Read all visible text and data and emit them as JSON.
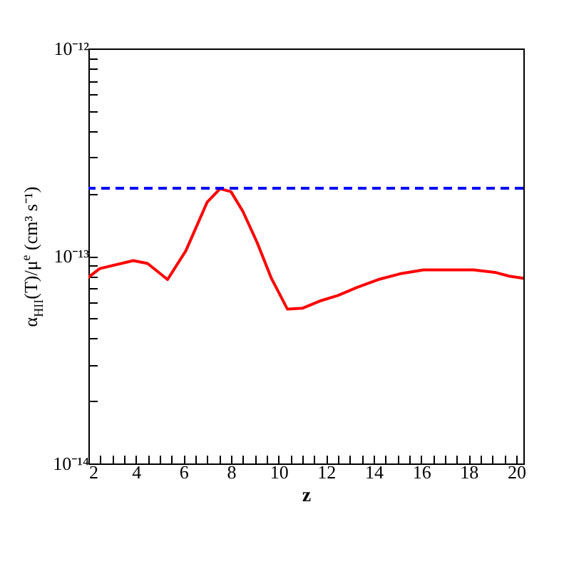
{
  "chart_data": {
    "type": "line",
    "xlabel": "z",
    "ylabel": "α$_{HII}$(T)/μ$^{e}$ (cm³ s⁻¹)",
    "log": "y",
    "grid": false,
    "marker": "none",
    "line_style": "solid",
    "x": [
      2,
      2.48,
      3.89,
      4.49,
      5.33,
      6.1,
      7.0,
      7.54,
      8.0,
      8.5,
      9.1,
      9.7,
      10.37,
      11.0,
      11.8,
      12.5,
      13.3,
      14.2,
      15.1,
      16.1,
      17.1,
      18.2,
      19.1,
      19.7,
      20.3
    ],
    "series": [
      {
        "color": "#ff0000",
        "values": [
          7.9e-14,
          8.7e-14,
          9.5e-14,
          9.2e-14,
          7.7e-14,
          1.06e-13,
          1.82e-13,
          2.11e-13,
          2.04e-13,
          1.64e-13,
          1.16e-13,
          7.8e-14,
          5.55e-14,
          5.6e-14,
          6.1e-14,
          6.45e-14,
          7.05e-14,
          7.7e-14,
          8.2e-14,
          8.57e-14,
          8.57e-14,
          8.57e-14,
          8.34e-14,
          8e-14,
          7.8e-14
        ]
      }
    ],
    "ref_lines": [
      {
        "axis": "y",
        "value": 2.12e-13,
        "color": "#0000ff",
        "line_style": "dashed"
      }
    ],
    "xlim": [
      2,
      20.3
    ],
    "xticks": [
      2,
      {
        "value": 2.5,
        "label": null
      },
      {
        "value": 3,
        "label": null
      },
      {
        "value": 3.5,
        "label": null
      },
      4,
      {
        "value": 4.5,
        "label": null
      },
      {
        "value": 5,
        "label": null
      },
      {
        "value": 5.5,
        "label": null
      },
      6,
      {
        "value": 6.5,
        "label": null
      },
      {
        "value": 7,
        "label": null
      },
      {
        "value": 7.5,
        "label": null
      },
      8,
      {
        "value": 8.5,
        "label": null
      },
      {
        "value": 9,
        "label": null
      },
      {
        "value": 9.5,
        "label": null
      },
      10,
      {
        "value": 10.5,
        "label": null
      },
      {
        "value": 11,
        "label": null
      },
      {
        "value": 11.5,
        "label": null
      },
      12,
      {
        "value": 12.5,
        "label": null
      },
      {
        "value": 13,
        "label": null
      },
      {
        "value": 13.5,
        "label": null
      },
      14,
      {
        "value": 14.5,
        "label": null
      },
      {
        "value": 15,
        "label": null
      },
      {
        "value": 15.5,
        "label": null
      },
      16,
      {
        "value": 16.5,
        "label": null
      },
      {
        "value": 17,
        "label": null
      },
      {
        "value": 17.5,
        "label": null
      },
      18,
      {
        "value": 18.5,
        "label": null
      },
      {
        "value": 19,
        "label": null
      },
      {
        "value": 19.5,
        "label": null
      },
      20
    ],
    "ylim": [
      1e-14,
      1e-12
    ],
    "yticks": [
      {
        "value": 1e-14,
        "label": "10⁻¹⁴"
      },
      {
        "value": 2e-14,
        "label": null
      },
      {
        "value": 3e-14,
        "label": null
      },
      {
        "value": 4e-14,
        "label": null
      },
      {
        "value": 5e-14,
        "label": null
      },
      {
        "value": 6e-14,
        "label": null
      },
      {
        "value": 7e-14,
        "label": null
      },
      {
        "value": 8e-14,
        "label": null
      },
      {
        "value": 9e-14,
        "label": null
      },
      {
        "value": 1e-13,
        "label": "10⁻¹³"
      },
      {
        "value": 2e-13,
        "label": null
      },
      {
        "value": 3e-13,
        "label": null
      },
      {
        "value": 4e-13,
        "label": null
      },
      {
        "value": 5e-13,
        "label": null
      },
      {
        "value": 6e-13,
        "label": null
      },
      {
        "value": 7e-13,
        "label": null
      },
      {
        "value": 8e-13,
        "label": null
      },
      {
        "value": 9e-13,
        "label": null
      },
      {
        "value": 1e-12,
        "label": "10⁻¹²"
      }
    ]
  }
}
